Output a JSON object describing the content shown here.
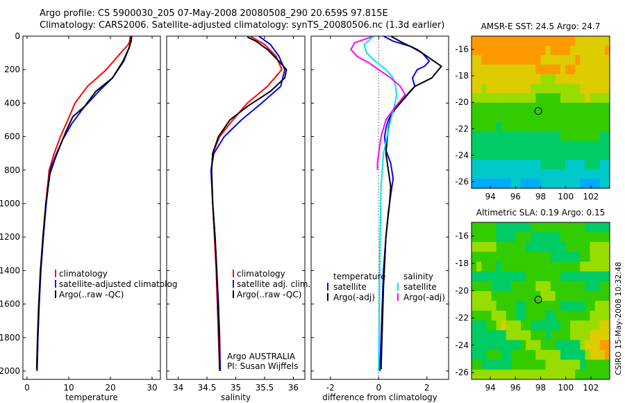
{
  "figure": {
    "title_line1": "Argo profile: CS 5900030_205 07-May-2008 20080508_290 20.659S 97.815E",
    "title_line2": "Climatology: CARS2006. Satellite-adjusted climatology: synTS_20080506.nc (1.3d earlier)",
    "credit": "CSIRO 15-May-2008 10:32:48",
    "colors": {
      "climatology": "#ff0000",
      "satellite": "#0000ff",
      "argo": "#000000",
      "sat_salinity": "#00e5e5",
      "argo_salinity": "#ff00ff"
    }
  },
  "chart_data": [
    {
      "id": "temperature",
      "type": "line",
      "xlabel": "temperature",
      "ylabel": "",
      "xlim": [
        -1,
        32
      ],
      "ylim": [
        2050,
        0
      ],
      "y_reversed": true,
      "xticks": [
        0,
        10,
        20,
        30
      ],
      "yticks": [
        0,
        200,
        400,
        600,
        800,
        1000,
        1200,
        1400,
        1600,
        1800,
        2000
      ],
      "legend": [
        "climatology",
        "satellite-adjusted climatolog",
        "Argo(..raw -QC)"
      ],
      "series": [
        {
          "name": "climatology",
          "color": "#ff0000",
          "x": [
            24.8,
            24.6,
            24.3,
            22.5,
            19.0,
            14.5,
            11.5,
            9.8,
            8.0,
            6.5,
            5.3,
            4.5,
            3.9,
            3.3,
            2.9,
            2.6,
            2.4
          ],
          "y": [
            0,
            30,
            50,
            100,
            200,
            300,
            400,
            500,
            600,
            700,
            800,
            1000,
            1200,
            1400,
            1600,
            1800,
            2000
          ]
        },
        {
          "name": "satellite-adjusted climatolog",
          "color": "#0000ff",
          "x": [
            25.1,
            25.0,
            24.3,
            23.2,
            20.5,
            17.2,
            13.5,
            10.8,
            8.5,
            6.9,
            5.5,
            4.6,
            3.9,
            3.3,
            2.9,
            2.6,
            2.4
          ],
          "y": [
            0,
            30,
            80,
            150,
            250,
            330,
            430,
            520,
            620,
            710,
            800,
            1000,
            1200,
            1400,
            1600,
            1800,
            2000
          ]
        },
        {
          "name": "Argo(..raw -QC)",
          "color": "#000000",
          "x": [
            25.0,
            24.9,
            24.5,
            23.0,
            20.5,
            16.5,
            13.8,
            11.0,
            9.5,
            8.5,
            6.9,
            5.5,
            4.5,
            3.8,
            3.2,
            2.8,
            2.5,
            2.3
          ],
          "y": [
            5,
            30,
            70,
            150,
            250,
            330,
            420,
            480,
            560,
            620,
            720,
            820,
            1000,
            1200,
            1400,
            1600,
            1800,
            1990
          ]
        }
      ]
    },
    {
      "id": "salinity",
      "type": "line",
      "xlabel": "salinity",
      "ylabel": "",
      "xlim": [
        33.8,
        36.2
      ],
      "ylim": [
        2050,
        0
      ],
      "y_reversed": true,
      "xticks": [
        34,
        34.5,
        35,
        35.5,
        36
      ],
      "annotations": [
        "Argo AUSTRALIA",
        "PI: Susan Wijffels"
      ],
      "legend": [
        "climatology",
        "satellite adj. clim.",
        "Argo(..raw -QC)"
      ],
      "series": [
        {
          "name": "climatology",
          "color": "#ff0000",
          "x": [
            35.25,
            35.5,
            35.7,
            35.8,
            35.55,
            35.2,
            34.95,
            34.72,
            34.6,
            34.58,
            34.6,
            34.63,
            34.66,
            34.68,
            34.7,
            34.72
          ],
          "y": [
            0,
            50,
            120,
            200,
            300,
            400,
            500,
            600,
            700,
            800,
            1000,
            1200,
            1400,
            1600,
            1800,
            2000
          ]
        },
        {
          "name": "satellite adj. clim.",
          "color": "#0000ff",
          "x": [
            35.4,
            35.6,
            35.75,
            35.85,
            35.78,
            35.45,
            35.1,
            34.8,
            34.62,
            34.57,
            34.6,
            34.64,
            34.67,
            34.7,
            34.72,
            34.73
          ],
          "y": [
            0,
            50,
            120,
            200,
            300,
            400,
            500,
            600,
            700,
            800,
            1000,
            1200,
            1400,
            1600,
            1800,
            2000
          ]
        },
        {
          "name": "Argo(..raw -QC)",
          "color": "#000000",
          "x": [
            35.2,
            35.35,
            35.55,
            35.75,
            35.88,
            35.85,
            35.6,
            35.2,
            34.9,
            34.7,
            34.6,
            34.58,
            34.6,
            34.64,
            34.67,
            34.69,
            34.71,
            34.72
          ],
          "y": [
            5,
            30,
            80,
            150,
            200,
            250,
            330,
            420,
            500,
            600,
            700,
            800,
            1000,
            1200,
            1400,
            1600,
            1800,
            1990
          ]
        }
      ]
    },
    {
      "id": "difference",
      "type": "line",
      "xlabel": "difference from climatology",
      "ylabel": "",
      "xlim": [
        -2.8,
        2.9
      ],
      "ylim": [
        2050,
        0
      ],
      "y_reversed": true,
      "zero_line": "dotted",
      "xticks": [
        -2,
        0,
        2
      ],
      "legend": [
        "temperature",
        "satellite",
        "Argo(-adj)",
        "salinity",
        "satellite",
        "Argo(-adj)"
      ],
      "series": [
        {
          "name": "satellite",
          "color": "#0000ff",
          "x": [
            0.2,
            0.6,
            1.3,
            1.8,
            2.1,
            1.9,
            1.6,
            1.4,
            1.5,
            1.2,
            0.9,
            0.6,
            0.4,
            0.3,
            0.25,
            0.3,
            0.5,
            0.6,
            0.5,
            0.4,
            0.3,
            0.2,
            0.15,
            0.1,
            0.05
          ],
          "y": [
            0,
            30,
            60,
            100,
            150,
            180,
            200,
            250,
            300,
            350,
            400,
            450,
            500,
            550,
            600,
            680,
            760,
            850,
            950,
            1050,
            1200,
            1400,
            1600,
            1800,
            2000
          ]
        },
        {
          "name": "Argo(-adj)",
          "color": "#000000",
          "x": [
            0.5,
            1.0,
            1.6,
            2.0,
            2.6,
            2.2,
            1.5,
            1.3,
            1.0,
            0.7,
            0.5,
            0.4,
            0.35,
            0.3,
            0.4,
            0.5,
            0.45,
            0.3,
            0.2,
            0.1
          ],
          "y": [
            0,
            40,
            80,
            120,
            180,
            250,
            300,
            330,
            380,
            430,
            480,
            550,
            620,
            700,
            800,
            900,
            1000,
            1200,
            1500,
            1990
          ]
        },
        {
          "name": "salinity satellite",
          "color": "#00e5e5",
          "x": [
            -0.2,
            -0.6,
            -0.5,
            -0.15,
            0.3,
            0.6,
            0.7,
            0.75,
            0.65,
            0.5,
            0.35,
            0.2,
            0.1,
            0.05,
            0.0
          ],
          "y": [
            0,
            50,
            100,
            150,
            200,
            250,
            300,
            350,
            420,
            500,
            600,
            700,
            900,
            1300,
            2000
          ]
        },
        {
          "name": "salinity Argo(-adj)",
          "color": "#ff00ff",
          "x": [
            -0.3,
            -1.0,
            -1.15,
            -0.9,
            -0.4,
            0.0,
            0.5,
            0.9,
            1.1,
            0.7,
            0.3,
            0.1,
            0.0,
            -0.05,
            -0.05
          ],
          "y": [
            5,
            40,
            80,
            120,
            160,
            200,
            250,
            300,
            350,
            420,
            500,
            600,
            700,
            760,
            800
          ]
        }
      ]
    },
    {
      "id": "sst-map",
      "type": "heatmap",
      "title": "AMSR-E SST: 24.5 Argo: 24.7",
      "xlim": [
        92.5,
        103.5
      ],
      "ylim": [
        -26.5,
        -15
      ],
      "xticks": [
        94,
        96,
        98,
        100,
        102
      ],
      "yticks": [
        -16,
        -18,
        -20,
        -22,
        -24,
        -26
      ],
      "marker": {
        "lon": 97.815,
        "lat": -20.659
      },
      "palette": [
        "#00aaff",
        "#00c8c8",
        "#00cc66",
        "#33cc00",
        "#99dd00",
        "#ddcc00",
        "#ff9900"
      ],
      "grid_rows": [
        "6666666666666666666665555555",
        "6666666666666665666655555556",
        "5566666666666655555556555555",
        "5555555555555666665665555555",
        "5555555555555544455555555555",
        "5545555555554444444444555555",
        "4444444444444333334444454444",
        "3333333333333333333333333333",
        "3333333333333333333333333333",
        "3333323333333333333333333333",
        "2222222222222222223333333322",
        "2222222222222222222222222222",
        "2222222222222222222222222222",
        "1111111111111122222111122211",
        "1111111111111111111111111111",
        "0000000011000011111111000011"
      ]
    },
    {
      "id": "sla-map",
      "type": "heatmap",
      "title": "Altimetric SLA: 0.19 Argo: 0.15",
      "xlim": [
        92.5,
        103.5
      ],
      "ylim": [
        -26.5,
        -15
      ],
      "xticks": [
        94,
        96,
        98,
        100,
        102
      ],
      "yticks": [
        -16,
        -18,
        -20,
        -22,
        -24,
        -26
      ],
      "marker": {
        "lon": 97.815,
        "lat": -20.659
      },
      "palette": [
        "#00aaff",
        "#00c8c8",
        "#00cc66",
        "#33cc00",
        "#99dd00",
        "#ddcc00",
        "#ff9900"
      ],
      "grid_rows": [
        "3333322222223333333333322222",
        "3333322223332222223333333333",
        "4444433333322222222333334444",
        "3333333333333333222222334444",
        "3433323333333333333333444444",
        "2222222222233333332222222222",
        "3333222233333444333333322233",
        "4444333333333344433333333333",
        "4444433332233333332222233444",
        "3333444332233332233333334444",
        "2223345444332222223344444455",
        "2222222444443332333344445555",
        "2222222222344433322222455566",
        "2223332233333444442222245556",
        "3322222233333334444444233333",
        "4444444444444444444443333333"
      ]
    }
  ]
}
